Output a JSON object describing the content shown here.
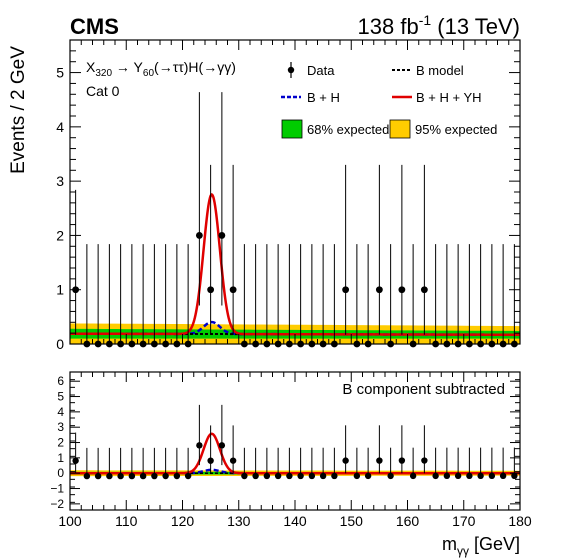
{
  "header": {
    "experiment": "CMS",
    "lumi_main": "138 fb",
    "lumi_exp": "-1",
    "lumi_tail": " (13 TeV)"
  },
  "chart_data": {
    "type": "scatter",
    "process": {
      "a": "X",
      "a_sub": "320",
      "b": " → Y",
      "b_sub": "60",
      "c": "(→ττ)H(→γγ)"
    },
    "category": "Cat 0",
    "ylabel": "Events / 2 GeV",
    "xlabel_main": "m",
    "xlabel_sub": "γγ",
    "xlabel_unit": " [GeV]",
    "xlim": [
      100,
      180
    ],
    "xticks": [
      100,
      110,
      120,
      130,
      140,
      150,
      160,
      170,
      180
    ],
    "ylim_top": [
      0,
      5.6
    ],
    "yticks_top": [
      0,
      1,
      2,
      3,
      4,
      5
    ],
    "ylim_bottom": [
      -2.4,
      6.6
    ],
    "yticks_bottom": [
      -2,
      -1,
      0,
      1,
      2,
      3,
      4,
      5,
      6
    ],
    "bottom_label": "B component subtracted",
    "legend": {
      "data": "Data",
      "bmodel": "B model",
      "bh": "B + H",
      "bhyh": "B + H + YH",
      "band68": "68% expected",
      "band95": "95% expected"
    },
    "colors": {
      "data": "#000000",
      "bmodel": "#000000",
      "bh": "#0000cc",
      "bhyh": "#e00000",
      "band68": "#00cc00",
      "band95": "#ffcc00"
    },
    "data_points": {
      "x": [
        101,
        103,
        105,
        107,
        109,
        111,
        113,
        115,
        117,
        119,
        121,
        123,
        125,
        127,
        129,
        131,
        133,
        135,
        137,
        139,
        141,
        143,
        145,
        147,
        149,
        151,
        153,
        155,
        157,
        159,
        161,
        163,
        165,
        167,
        169,
        171,
        173,
        175,
        177,
        179
      ],
      "y": [
        1,
        0,
        0,
        0,
        0,
        0,
        0,
        0,
        0,
        0,
        0,
        2,
        1,
        2,
        1,
        0,
        0,
        0,
        0,
        0,
        0,
        0,
        0,
        0,
        1,
        0,
        0,
        1,
        0,
        1,
        0,
        1,
        0,
        0,
        0,
        0,
        0,
        0,
        0,
        0
      ],
      "err_up": [
        1.84,
        1.84,
        1.84,
        1.84,
        1.84,
        1.84,
        1.84,
        1.84,
        1.84,
        1.84,
        1.84,
        2.64,
        2.3,
        2.64,
        2.3,
        1.84,
        1.84,
        1.84,
        1.84,
        1.84,
        1.84,
        1.84,
        1.84,
        1.84,
        2.3,
        1.84,
        1.84,
        2.3,
        1.84,
        2.3,
        1.84,
        2.3,
        1.84,
        1.84,
        1.84,
        1.84,
        1.84,
        1.84,
        1.84,
        1.84
      ],
      "err_down": [
        0.83,
        0,
        0,
        0,
        0,
        0,
        0,
        0,
        0,
        0,
        0,
        1.29,
        0.83,
        1.29,
        0.83,
        0,
        0,
        0,
        0,
        0,
        0,
        0,
        0,
        0,
        0.83,
        0,
        0,
        0.83,
        0,
        0.83,
        0,
        0.83,
        0,
        0,
        0,
        0,
        0,
        0,
        0,
        0
      ]
    },
    "b_model": {
      "x": [
        100,
        180
      ],
      "y": [
        0.19,
        0.17
      ]
    },
    "signal": {
      "mass": 125.2,
      "h_peak": 0.22,
      "yh_peak": 2.35,
      "width": 1.45
    },
    "bands": {
      "x": [
        100,
        180
      ],
      "p68_half": [
        0.09,
        0.07
      ],
      "p95_half": [
        0.19,
        0.16
      ]
    }
  }
}
